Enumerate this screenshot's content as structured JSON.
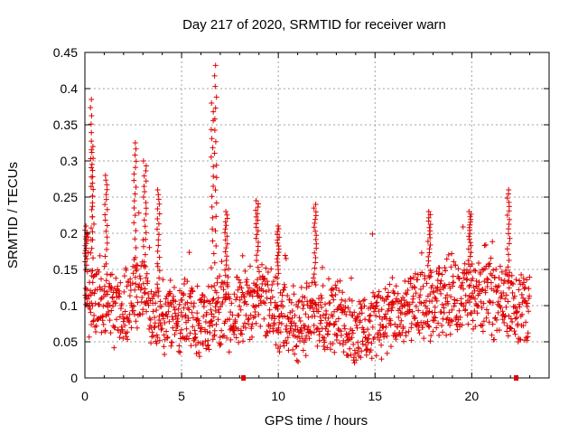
{
  "chart_data": {
    "type": "scatter",
    "title": "Day 217 of 2020, SRMTID for receiver warn",
    "xlabel": "GPS time / hours",
    "ylabel": "SRMTID / TECUs",
    "xlim": [
      0,
      24
    ],
    "ylim": [
      0,
      0.45
    ],
    "xticks": [
      "0",
      "5",
      "10",
      "15",
      "20"
    ],
    "yticks": [
      "0",
      "0.05",
      "0.1",
      "0.15",
      "0.2",
      "0.25",
      "0.3",
      "0.35",
      "0.4",
      "0.45"
    ],
    "grid": true,
    "marker": "plus",
    "color": "#e00000",
    "data_gap_markers_hours": [
      8.2,
      22.3
    ],
    "x_end_hours": 23,
    "baseline_profile": [
      [
        0.0,
        0.11
      ],
      [
        1.0,
        0.105
      ],
      [
        2.0,
        0.09
      ],
      [
        3.0,
        0.12
      ],
      [
        4.0,
        0.075
      ],
      [
        5.0,
        0.085
      ],
      [
        6.0,
        0.08
      ],
      [
        7.0,
        0.09
      ],
      [
        8.0,
        0.095
      ],
      [
        9.0,
        0.115
      ],
      [
        10.0,
        0.09
      ],
      [
        11.0,
        0.07
      ],
      [
        12.0,
        0.095
      ],
      [
        13.0,
        0.085
      ],
      [
        14.0,
        0.06
      ],
      [
        15.0,
        0.08
      ],
      [
        16.0,
        0.085
      ],
      [
        17.0,
        0.095
      ],
      [
        18.0,
        0.1
      ],
      [
        19.0,
        0.11
      ],
      [
        20.0,
        0.115
      ],
      [
        21.0,
        0.11
      ],
      [
        22.0,
        0.1
      ],
      [
        23.0,
        0.09
      ]
    ],
    "peaks": [
      {
        "x": 0.05,
        "y": 0.21
      },
      {
        "x": 0.35,
        "y": 0.385
      },
      {
        "x": 0.4,
        "y": 0.32
      },
      {
        "x": 1.1,
        "y": 0.28
      },
      {
        "x": 2.6,
        "y": 0.325
      },
      {
        "x": 3.1,
        "y": 0.3
      },
      {
        "x": 3.8,
        "y": 0.26
      },
      {
        "x": 6.6,
        "y": 0.38
      },
      {
        "x": 6.75,
        "y": 0.432
      },
      {
        "x": 7.3,
        "y": 0.23
      },
      {
        "x": 8.9,
        "y": 0.245
      },
      {
        "x": 10.0,
        "y": 0.21
      },
      {
        "x": 11.9,
        "y": 0.24
      },
      {
        "x": 17.8,
        "y": 0.23
      },
      {
        "x": 19.9,
        "y": 0.23
      },
      {
        "x": 21.9,
        "y": 0.26
      }
    ]
  }
}
